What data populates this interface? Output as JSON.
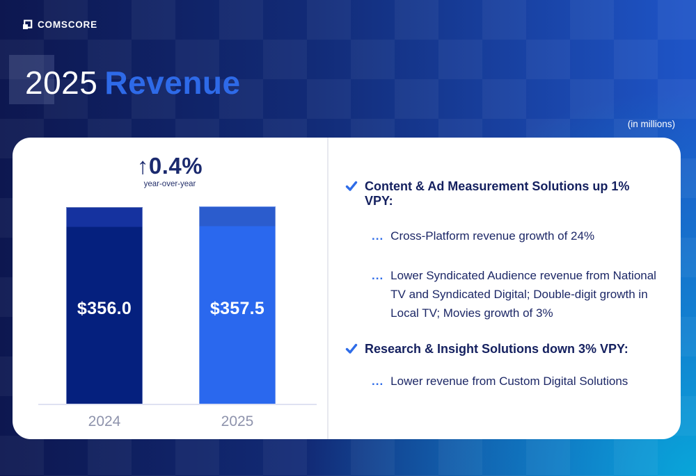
{
  "slide": {
    "logo_text": "COMSCORE",
    "title": {
      "year": "2025",
      "word": "Revenue"
    },
    "units_note": "(in millions)"
  },
  "chart_data": {
    "type": "bar",
    "title": "2025 Revenue",
    "units": "(in millions)",
    "categories": [
      "2024",
      "2025"
    ],
    "values": [
      356.0,
      357.5
    ],
    "ylim": [
      0,
      357.5
    ],
    "grid": false,
    "bars": [
      {
        "category": "2024",
        "value": 356.0,
        "display": "$356.0",
        "body_color": "#05207e",
        "cap_color": "#15329f"
      },
      {
        "category": "2025",
        "value": 357.5,
        "display": "$357.5",
        "body_color": "#2a68ee",
        "cap_color": "#2b5ccd"
      }
    ],
    "growth": {
      "arrow": "↑",
      "value": "0.4%",
      "caption": "year-over-year"
    }
  },
  "bullets": [
    {
      "type": "heading",
      "text": "Content & Ad Measurement Solutions up 1% VPY:"
    },
    {
      "type": "sub",
      "text": "Cross-Platform revenue growth of 24%"
    },
    {
      "type": "sub",
      "text": "Lower Syndicated Audience revenue from National TV and Syndicated Digital; Double-digit growth in Local TV; Movies growth of 3%"
    },
    {
      "type": "heading",
      "text": "Research & Insight Solutions down 3% VPY:"
    },
    {
      "type": "sub",
      "text": "Lower revenue from Custom Digital Solutions"
    }
  ],
  "ui": {
    "sub_marker": "..."
  },
  "colors": {
    "accent_blue": "#2e6ae8",
    "navy_text": "#14205f",
    "bar_2024": "#05207e",
    "bar_2025": "#2a68ee",
    "bg_navy": "#0d1750",
    "bg_blue": "#1e55c8",
    "bg_cyan": "#07aada",
    "axis_label_gray": "#8e93ac"
  }
}
